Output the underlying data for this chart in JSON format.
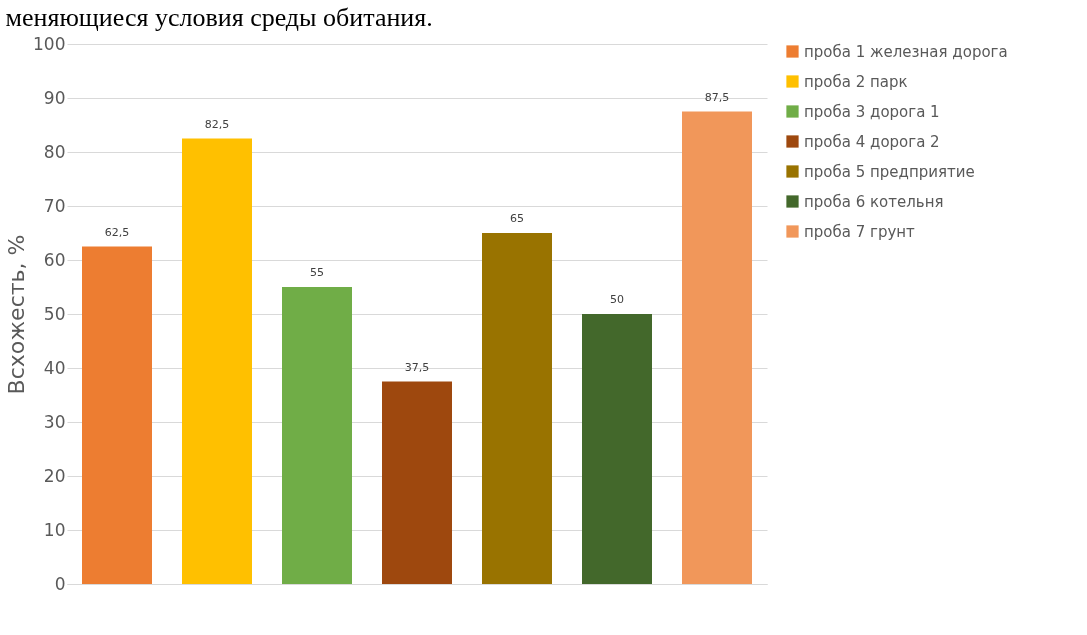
{
  "chart_data": {
    "type": "bar",
    "title": "меняющиеся условия среды обитания.",
    "ylabel": "Всхожесть, %",
    "categories": [
      null,
      null,
      null,
      null,
      null,
      null,
      null
    ],
    "series": [
      {
        "name": "проба 1 железная дорога",
        "color": "#ed7d31",
        "values": [
          62.5,
          null,
          null,
          null,
          null,
          null,
          null
        ],
        "value_labels": [
          "62,5",
          null,
          null,
          null,
          null,
          null,
          null
        ]
      },
      {
        "name": "проба 2 парк",
        "color": "#ffc000",
        "values": [
          null,
          82.5,
          null,
          null,
          null,
          null,
          null
        ],
        "value_labels": [
          null,
          "82,5",
          null,
          null,
          null,
          null,
          null
        ]
      },
      {
        "name": "проба 3 дорога 1",
        "color": "#70ad47",
        "values": [
          null,
          null,
          55,
          null,
          null,
          null,
          null
        ],
        "value_labels": [
          null,
          null,
          "55",
          null,
          null,
          null,
          null
        ]
      },
      {
        "name": "проба 4 дорога 2",
        "color": "#9e480e",
        "values": [
          null,
          null,
          null,
          37.5,
          null,
          null,
          null
        ],
        "value_labels": [
          null,
          null,
          null,
          "37,5",
          null,
          null,
          null
        ]
      },
      {
        "name": "проба 5 предприятие",
        "color": "#997300",
        "values": [
          null,
          null,
          null,
          null,
          65,
          null,
          null
        ],
        "value_labels": [
          null,
          null,
          null,
          null,
          "65",
          null,
          null
        ]
      },
      {
        "name": "проба 6 котельня",
        "color": "#43682b",
        "values": [
          null,
          null,
          null,
          null,
          null,
          50,
          null
        ],
        "value_labels": [
          null,
          null,
          null,
          null,
          null,
          "50",
          null
        ]
      },
      {
        "name": "проба 7 грунт",
        "color": "#f1975a",
        "values": [
          null,
          null,
          null,
          null,
          null,
          null,
          87.5
        ],
        "value_labels": [
          null,
          null,
          null,
          null,
          null,
          null,
          "87,5"
        ]
      }
    ],
    "ylim": [
      0,
      100
    ],
    "yticks": [
      0,
      10,
      20,
      30,
      40,
      50,
      60,
      70,
      80,
      90,
      100
    ],
    "grid": "y",
    "legend": "right",
    "tick_labels": "y"
  }
}
